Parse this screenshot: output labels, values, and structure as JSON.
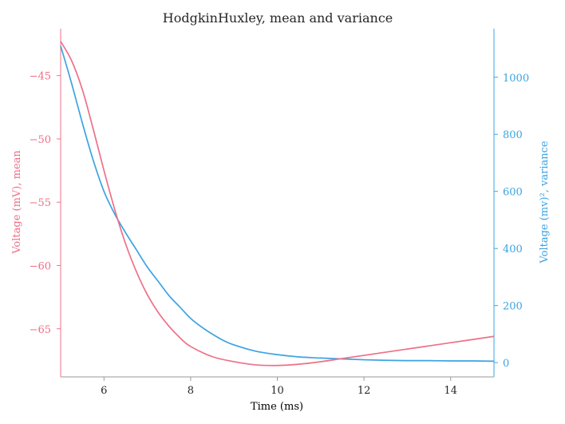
{
  "colors": {
    "mean": "#EE7088",
    "variance": "#3BA3E3",
    "xaxis": "#9A9A9A",
    "text": "#262626"
  },
  "chart_data": {
    "type": "line",
    "title": "HodgkinHuxley, mean and variance",
    "xlabel": "Time (ms)",
    "ylabel_left": "Voltage (mV), mean",
    "ylabel_right": "Voltage (mv)², variance",
    "xlim": [
      5,
      15
    ],
    "ylim_left": [
      -68.8,
      -41.3
    ],
    "ylim_right": [
      -50,
      1170
    ],
    "x_ticks": [
      6,
      8,
      10,
      12,
      14
    ],
    "x_tick_labels": [
      "6",
      "8",
      "10",
      "12",
      "14"
    ],
    "y_left_ticks": [
      -45,
      -50,
      -55,
      -60,
      -65
    ],
    "y_left_tick_labels": [
      "−45",
      "−50",
      "−55",
      "−60",
      "−65"
    ],
    "y_right_ticks": [
      1000,
      800,
      600,
      400,
      200,
      0
    ],
    "y_right_tick_labels": [
      "1000",
      "800",
      "600",
      "400",
      "200",
      "0"
    ],
    "grid": false,
    "series": [
      {
        "axis": "left",
        "x": [
          5.0,
          5.25,
          5.5,
          5.75,
          6.0,
          6.25,
          6.5,
          6.75,
          7.0,
          7.25,
          7.5,
          7.75,
          8.0,
          8.5,
          9.0,
          9.5,
          10.0,
          10.5,
          11.0,
          11.5,
          12.0,
          12.5,
          13.0,
          13.5,
          14.0,
          14.5,
          15.0
        ],
        "values": [
          -42.3,
          -43.8,
          -46.1,
          -49.2,
          -52.5,
          -55.6,
          -58.3,
          -60.5,
          -62.3,
          -63.7,
          -64.8,
          -65.7,
          -66.4,
          -67.2,
          -67.6,
          -67.85,
          -67.9,
          -67.8,
          -67.6,
          -67.35,
          -67.1,
          -66.85,
          -66.6,
          -66.35,
          -66.1,
          -65.85,
          -65.6
        ]
      },
      {
        "axis": "right",
        "x": [
          5.0,
          5.25,
          5.5,
          5.75,
          6.0,
          6.25,
          6.5,
          6.75,
          7.0,
          7.25,
          7.5,
          7.75,
          8.0,
          8.25,
          8.5,
          8.75,
          9.0,
          9.5,
          10.0,
          10.5,
          11.0,
          11.5,
          12.0,
          12.5,
          13.0,
          13.5,
          14.0,
          14.5,
          15.0
        ],
        "values": [
          1110,
          980,
          840,
          710,
          600,
          520,
          455,
          395,
          335,
          285,
          235,
          195,
          155,
          125,
          100,
          78,
          62,
          40,
          28,
          20,
          16,
          13,
          10,
          8,
          7,
          7,
          6,
          6,
          5
        ]
      }
    ]
  }
}
